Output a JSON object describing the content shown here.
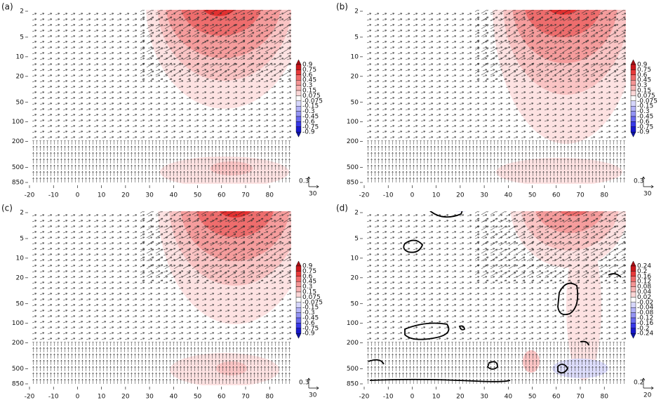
{
  "chart_data": [
    {
      "type": "contour",
      "label": "(a)",
      "xlim": [
        -20,
        89
      ],
      "xticks": [
        -20,
        -10,
        0,
        10,
        20,
        30,
        40,
        50,
        60,
        70,
        80
      ],
      "ylim": [
        850,
        2
      ],
      "yticks": [
        2,
        5,
        10,
        20,
        50,
        100,
        200,
        500,
        850
      ],
      "log_y": true,
      "colorbar": {
        "levels": [
          0.9,
          0.75,
          0.6,
          0.45,
          0.3,
          0.15,
          0.075,
          -0.075,
          -0.15,
          -0.3,
          -0.45,
          -0.6,
          -0.75,
          -0.9
        ],
        "colors": [
          "#a50f15",
          "#cb181d",
          "#e8393a",
          "#ef6a6a",
          "#f49494",
          "#f8b4b4",
          "#fbd6d6",
          "#ffffff",
          "#d6d6fb",
          "#b4b4f8",
          "#9494f4",
          "#6a6aef",
          "#3939e8",
          "#1818cb",
          "#0f15a5"
        ]
      },
      "ref_vector": {
        "x": 0.3,
        "y": 30
      }
    },
    {
      "type": "contour",
      "label": "(b)",
      "xlim": [
        -20,
        89
      ],
      "xticks": [
        -20,
        -10,
        0,
        10,
        20,
        30,
        40,
        50,
        60,
        70,
        80
      ],
      "ylim": [
        850,
        2
      ],
      "yticks": [
        2,
        5,
        10,
        20,
        50,
        100,
        200,
        500,
        850
      ],
      "log_y": true,
      "colorbar": {
        "levels": [
          0.9,
          0.75,
          0.6,
          0.45,
          0.3,
          0.15,
          0.075,
          -0.075,
          -0.15,
          -0.3,
          -0.45,
          -0.6,
          -0.75,
          -0.9
        ],
        "colors": [
          "#a50f15",
          "#cb181d",
          "#e8393a",
          "#ef6a6a",
          "#f49494",
          "#f8b4b4",
          "#fbd6d6",
          "#ffffff",
          "#d6d6fb",
          "#b4b4f8",
          "#9494f4",
          "#6a6aef",
          "#3939e8",
          "#1818cb",
          "#0f15a5"
        ]
      },
      "ref_vector": {
        "x": 0.3,
        "y": 30
      }
    },
    {
      "type": "contour",
      "label": "(c)",
      "xlim": [
        -20,
        89
      ],
      "xticks": [
        -20,
        -10,
        0,
        10,
        20,
        30,
        40,
        50,
        60,
        70,
        80
      ],
      "ylim": [
        850,
        2
      ],
      "yticks": [
        2,
        5,
        10,
        20,
        50,
        100,
        200,
        500,
        850
      ],
      "log_y": true,
      "colorbar": {
        "levels": [
          0.9,
          0.75,
          0.6,
          0.45,
          0.3,
          0.15,
          0.075,
          -0.075,
          -0.15,
          -0.3,
          -0.45,
          -0.6,
          -0.75,
          -0.9
        ],
        "colors": [
          "#a50f15",
          "#cb181d",
          "#e8393a",
          "#ef6a6a",
          "#f49494",
          "#f8b4b4",
          "#fbd6d6",
          "#ffffff",
          "#d6d6fb",
          "#b4b4f8",
          "#9494f4",
          "#6a6aef",
          "#3939e8",
          "#1818cb",
          "#0f15a5"
        ]
      },
      "ref_vector": {
        "x": 0.3,
        "y": 30
      }
    },
    {
      "type": "contour",
      "label": "(d)",
      "xlim": [
        -20,
        89
      ],
      "xticks": [
        -20,
        -10,
        0,
        10,
        20,
        30,
        40,
        50,
        60,
        70,
        80
      ],
      "ylim": [
        850,
        2
      ],
      "yticks": [
        2,
        5,
        10,
        20,
        50,
        100,
        200,
        500,
        850
      ],
      "log_y": true,
      "colorbar": {
        "levels": [
          0.24,
          0.2,
          0.16,
          0.12,
          0.08,
          0.04,
          0.02,
          -0.02,
          -0.04,
          -0.08,
          -0.12,
          -0.16,
          -0.2,
          -0.24
        ],
        "colors": [
          "#a50f15",
          "#cb181d",
          "#e8393a",
          "#ef6a6a",
          "#f49494",
          "#f8b4b4",
          "#fbd6d6",
          "#ffffff",
          "#d6d6fb",
          "#b4b4f8",
          "#9494f4",
          "#6a6aef",
          "#3939e8",
          "#1818cb",
          "#0f15a5"
        ]
      },
      "ref_vector": {
        "x": 0.2,
        "y": 20
      }
    }
  ]
}
